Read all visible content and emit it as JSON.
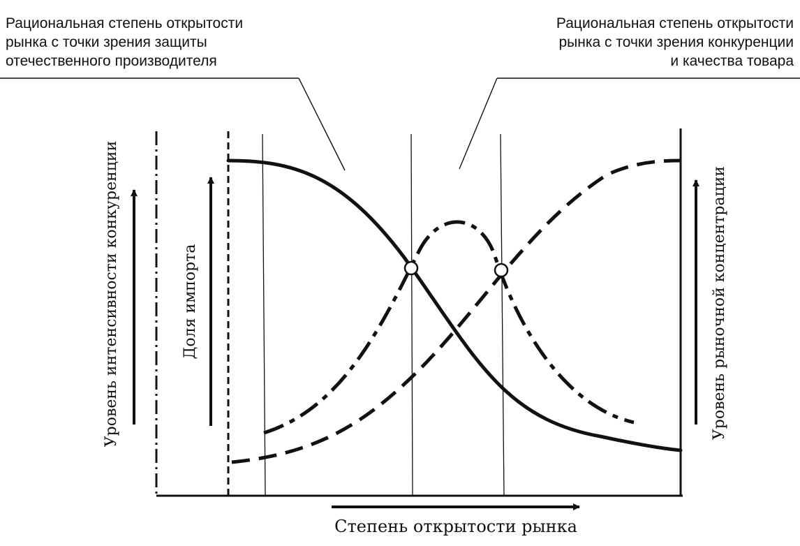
{
  "annotations": {
    "left": {
      "line1": "Рациональная степень открытости",
      "line2": "рынка с точки зрения защиты",
      "line3": "отечественного производителя"
    },
    "right": {
      "line1": "Рациональная степень открытости",
      "line2": "рынка с точки зрения конкуренции",
      "line3": "и качества товара"
    }
  },
  "labels": {
    "competition_level": "Уровень интенсивности конкуренции",
    "import_share": "Доля импорта",
    "market_concentration": "Уровень рыночной концентрации",
    "market_openness": "Степень открытости рынка"
  },
  "colors": {
    "ink": "#111111",
    "background": "#ffffff"
  }
}
